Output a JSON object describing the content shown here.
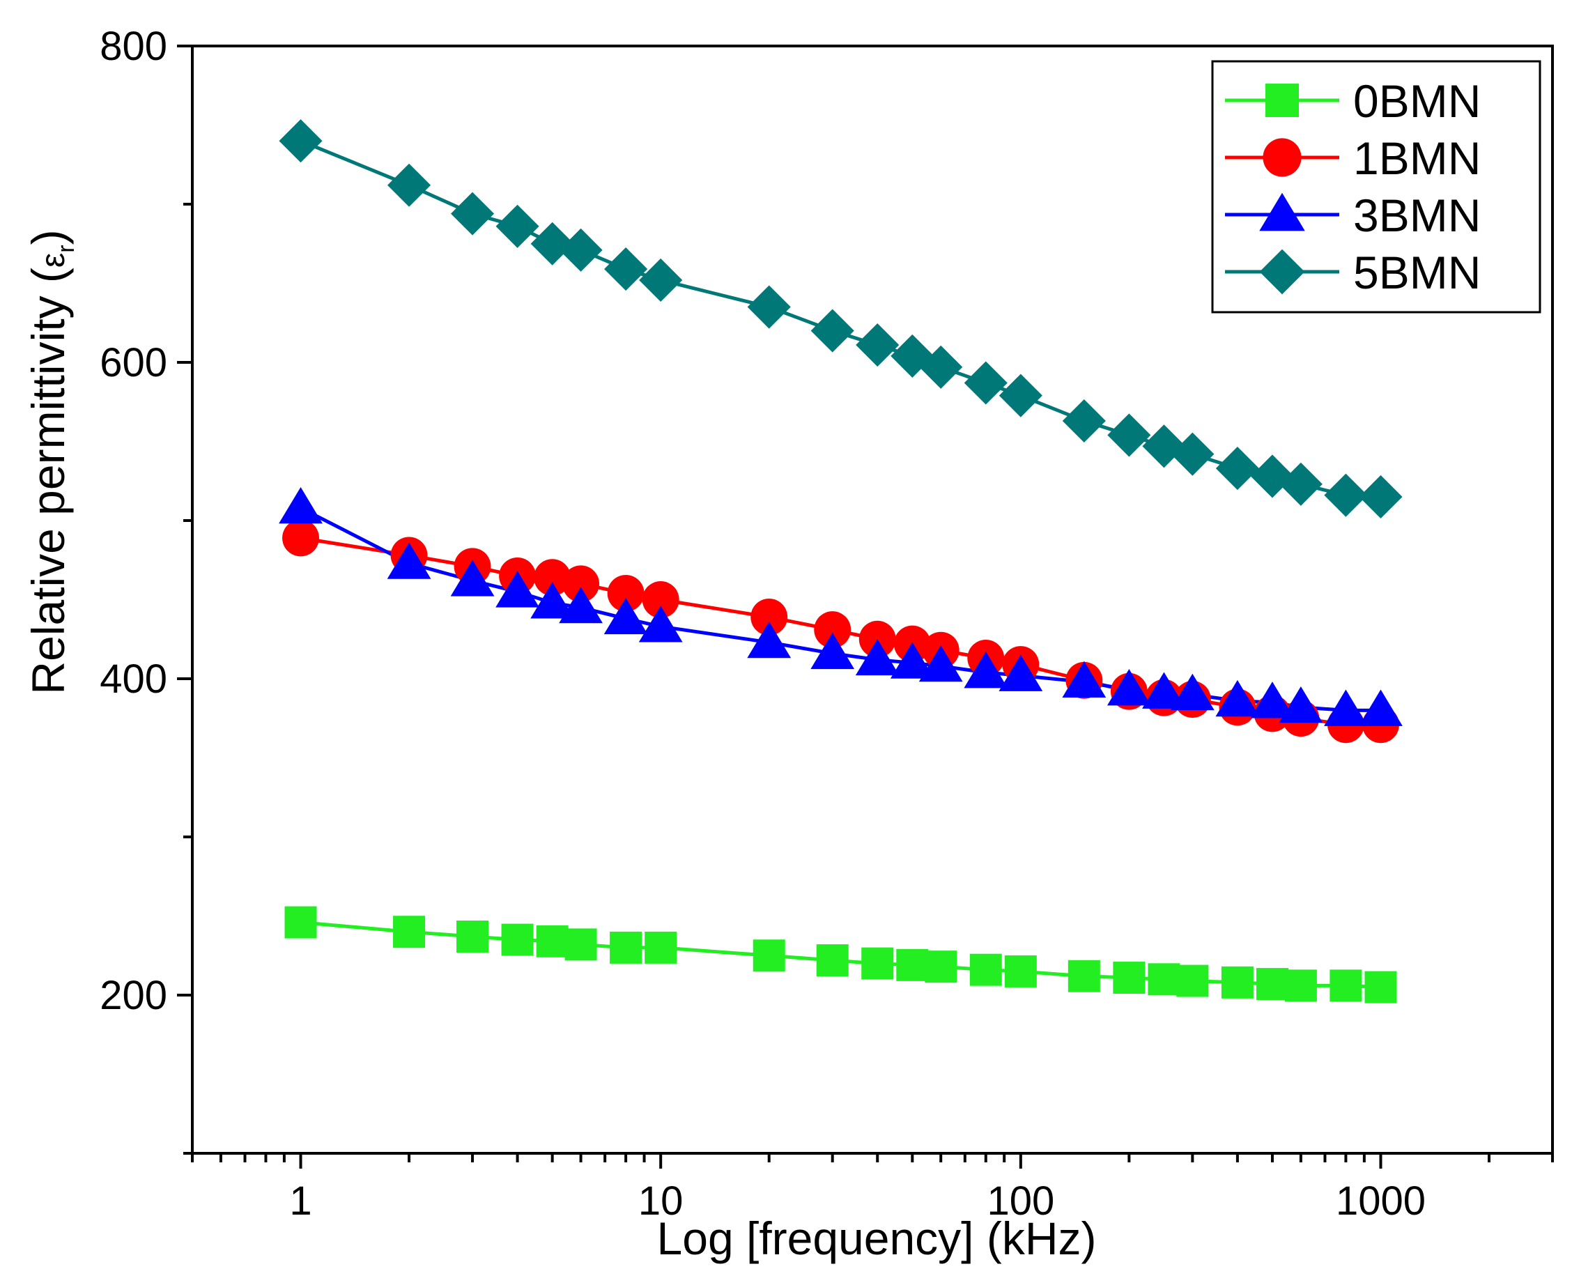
{
  "chart_data": {
    "type": "line",
    "title": "",
    "xlabel": "Log [frequency] (kHz)",
    "ylabel": {
      "main": "Relative permittivity (",
      "symbol": "ε",
      "subscript": "r",
      "close": ")"
    },
    "x_scale": "log",
    "xlim": [
      0.5,
      3000
    ],
    "ylim": [
      100,
      800
    ],
    "x_ticks": [
      1,
      10,
      100,
      1000
    ],
    "x_tick_labels": [
      "1",
      "10",
      "100",
      "1000"
    ],
    "y_ticks": [
      200,
      400,
      600,
      800
    ],
    "y_tick_labels": [
      "200",
      "400",
      "600",
      "800"
    ],
    "y_minor_ticks": [
      100,
      300,
      500,
      700
    ],
    "x": [
      1,
      2,
      3,
      4,
      5,
      6,
      8,
      10,
      20,
      30,
      40,
      50,
      60,
      80,
      100,
      150,
      200,
      250,
      300,
      400,
      500,
      600,
      800,
      1000
    ],
    "legend_position": "top-right",
    "series": [
      {
        "name": "0BMN",
        "color": "#22ee22",
        "marker": "square",
        "values": [
          246,
          240,
          237,
          235,
          234,
          232,
          230,
          230,
          225,
          222,
          220,
          219,
          218,
          216,
          215,
          212,
          211,
          210,
          209,
          208,
          207,
          206,
          206,
          205
        ]
      },
      {
        "name": "1BMN",
        "color": "#ff0000",
        "marker": "circle",
        "values": [
          489,
          478,
          471,
          465,
          464,
          460,
          454,
          450,
          439,
          431,
          425,
          422,
          418,
          413,
          409,
          399,
          392,
          388,
          387,
          382,
          378,
          375,
          371,
          371
        ]
      },
      {
        "name": "3BMN",
        "color": "#0000ff",
        "marker": "triangle",
        "values": [
          508,
          473,
          462,
          455,
          448,
          445,
          438,
          433,
          423,
          416,
          412,
          410,
          408,
          404,
          402,
          398,
          393,
          391,
          390,
          386,
          385,
          382,
          380,
          380
        ]
      },
      {
        "name": "5BMN",
        "color": "#007878",
        "marker": "diamond",
        "values": [
          740,
          712,
          694,
          686,
          675,
          671,
          659,
          652,
          635,
          620,
          611,
          604,
          597,
          587,
          579,
          563,
          554,
          547,
          542,
          533,
          528,
          523,
          516,
          515
        ]
      }
    ]
  }
}
